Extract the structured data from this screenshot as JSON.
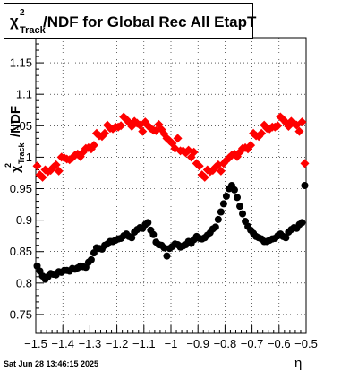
{
  "chart_data": {
    "type": "scatter",
    "title": {
      "prefix": "χ",
      "sup": "2",
      "sub": "Track",
      "text": "/NDF for Global Rec All EtapT"
    },
    "ylabel": {
      "prefix": "χ",
      "sup": "2",
      "sub": "Track",
      "text": "/NDF"
    },
    "xlabel": "η",
    "timestamp": "Sat Jun 28 13:46:15 2025",
    "xlim": [
      -1.5,
      -0.5
    ],
    "ylim": [
      0.72,
      1.19
    ],
    "grid": true,
    "x_ticks": [
      {
        "value": -1.5,
        "label": "−1.5"
      },
      {
        "value": -1.4,
        "label": "−1.4"
      },
      {
        "value": -1.3,
        "label": "−1.3"
      },
      {
        "value": -1.2,
        "label": "−1.2"
      },
      {
        "value": -1.1,
        "label": "−1.1"
      },
      {
        "value": -1.0,
        "label": "−1"
      },
      {
        "value": -0.9,
        "label": "−0.9"
      },
      {
        "value": -0.8,
        "label": "−0.8"
      },
      {
        "value": -0.7,
        "label": "−0.7"
      },
      {
        "value": -0.6,
        "label": "−0.6"
      },
      {
        "value": -0.5,
        "label": "−0.5"
      }
    ],
    "y_ticks": [
      {
        "value": 0.75,
        "label": "0.75"
      },
      {
        "value": 0.8,
        "label": "0.8"
      },
      {
        "value": 0.85,
        "label": "0.85"
      },
      {
        "value": 0.9,
        "label": "0.9"
      },
      {
        "value": 0.95,
        "label": "0.95"
      },
      {
        "value": 1.0,
        "label": "1"
      },
      {
        "value": 1.05,
        "label": "1.05"
      },
      {
        "value": 1.1,
        "label": "1.1"
      },
      {
        "value": 1.15,
        "label": "1.15"
      }
    ],
    "series": [
      {
        "color": "#ff0000",
        "marker": "diamond",
        "x": [
          -1.495,
          -1.485,
          -1.475,
          -1.465,
          -1.455,
          -1.445,
          -1.435,
          -1.425,
          -1.415,
          -1.405,
          -1.395,
          -1.385,
          -1.375,
          -1.365,
          -1.355,
          -1.345,
          -1.335,
          -1.325,
          -1.315,
          -1.305,
          -1.295,
          -1.285,
          -1.275,
          -1.265,
          -1.255,
          -1.245,
          -1.235,
          -1.225,
          -1.215,
          -1.205,
          -1.195,
          -1.185,
          -1.175,
          -1.165,
          -1.155,
          -1.145,
          -1.135,
          -1.125,
          -1.115,
          -1.105,
          -1.095,
          -1.085,
          -1.075,
          -1.065,
          -1.055,
          -1.045,
          -1.035,
          -1.025,
          -1.015,
          -1.005,
          -0.995,
          -0.985,
          -0.975,
          -0.965,
          -0.955,
          -0.945,
          -0.935,
          -0.925,
          -0.915,
          -0.905,
          -0.895,
          -0.885,
          -0.875,
          -0.865,
          -0.855,
          -0.845,
          -0.835,
          -0.825,
          -0.815,
          -0.805,
          -0.795,
          -0.785,
          -0.775,
          -0.765,
          -0.755,
          -0.745,
          -0.735,
          -0.725,
          -0.715,
          -0.705,
          -0.695,
          -0.685,
          -0.675,
          -0.665,
          -0.655,
          -0.645,
          -0.635,
          -0.625,
          -0.615,
          -0.605,
          -0.595,
          -0.585,
          -0.575,
          -0.565,
          -0.555,
          -0.545,
          -0.535,
          -0.525,
          -0.515,
          -0.505
        ],
        "y": [
          0.986,
          0.972,
          0.968,
          0.98,
          0.977,
          0.979,
          0.984,
          0.988,
          0.978,
          1.0,
          0.999,
          0.997,
          0.996,
          0.999,
          1.003,
          1.005,
          1.001,
          1.008,
          1.014,
          1.015,
          1.013,
          1.019,
          1.038,
          1.034,
          1.033,
          1.038,
          1.051,
          1.046,
          1.045,
          1.048,
          1.048,
          1.05,
          1.064,
          1.06,
          1.055,
          1.049,
          1.057,
          1.054,
          1.051,
          1.041,
          1.056,
          1.05,
          1.046,
          1.043,
          1.042,
          1.052,
          1.044,
          1.037,
          1.03,
          1.026,
          1.022,
          1.014,
          1.03,
          1.01,
          1.01,
          1.007,
          1.011,
          1.0,
          1.008,
          0.99,
          0.986,
          0.972,
          0.968,
          0.98,
          0.977,
          0.979,
          0.984,
          0.988,
          0.978,
          0.99,
          0.995,
          0.999,
          1.003,
          1.005,
          1.001,
          1.008,
          1.014,
          1.015,
          1.013,
          1.019,
          1.038,
          1.034,
          1.033,
          1.038,
          1.051,
          1.046,
          1.045,
          1.048,
          1.048,
          1.05,
          1.064,
          1.06,
          1.055,
          1.049,
          1.057,
          1.054,
          1.051,
          1.041,
          1.056,
          0.99
        ]
      },
      {
        "color": "#000000",
        "marker": "circle",
        "x": [
          -1.495,
          -1.485,
          -1.475,
          -1.465,
          -1.455,
          -1.445,
          -1.435,
          -1.425,
          -1.415,
          -1.405,
          -1.395,
          -1.385,
          -1.375,
          -1.365,
          -1.355,
          -1.345,
          -1.335,
          -1.325,
          -1.315,
          -1.305,
          -1.295,
          -1.285,
          -1.275,
          -1.265,
          -1.255,
          -1.245,
          -1.235,
          -1.225,
          -1.215,
          -1.205,
          -1.195,
          -1.185,
          -1.175,
          -1.165,
          -1.155,
          -1.145,
          -1.135,
          -1.125,
          -1.115,
          -1.105,
          -1.095,
          -1.085,
          -1.075,
          -1.065,
          -1.055,
          -1.045,
          -1.035,
          -1.025,
          -1.015,
          -1.005,
          -0.995,
          -0.985,
          -0.975,
          -0.965,
          -0.955,
          -0.945,
          -0.935,
          -0.925,
          -0.915,
          -0.905,
          -0.895,
          -0.885,
          -0.875,
          -0.865,
          -0.855,
          -0.845,
          -0.835,
          -0.825,
          -0.815,
          -0.805,
          -0.795,
          -0.785,
          -0.775,
          -0.765,
          -0.755,
          -0.745,
          -0.735,
          -0.725,
          -0.715,
          -0.705,
          -0.695,
          -0.685,
          -0.675,
          -0.665,
          -0.655,
          -0.645,
          -0.635,
          -0.625,
          -0.615,
          -0.605,
          -0.595,
          -0.585,
          -0.575,
          -0.565,
          -0.555,
          -0.545,
          -0.535,
          -0.525,
          -0.515,
          -0.505
        ],
        "y": [
          0.827,
          0.819,
          0.811,
          0.806,
          0.81,
          0.815,
          0.814,
          0.813,
          0.818,
          0.817,
          0.82,
          0.82,
          0.819,
          0.823,
          0.822,
          0.824,
          0.827,
          0.826,
          0.825,
          0.833,
          0.837,
          0.848,
          0.856,
          0.855,
          0.854,
          0.86,
          0.862,
          0.866,
          0.866,
          0.868,
          0.87,
          0.871,
          0.875,
          0.878,
          0.874,
          0.872,
          0.881,
          0.885,
          0.888,
          0.887,
          0.893,
          0.896,
          0.884,
          0.877,
          0.865,
          0.861,
          0.86,
          0.856,
          0.843,
          0.855,
          0.858,
          0.862,
          0.861,
          0.857,
          0.859,
          0.861,
          0.866,
          0.863,
          0.869,
          0.874,
          0.871,
          0.87,
          0.872,
          0.876,
          0.88,
          0.886,
          0.889,
          0.901,
          0.913,
          0.926,
          0.938,
          0.95,
          0.955,
          0.948,
          0.936,
          0.922,
          0.91,
          0.898,
          0.89,
          0.884,
          0.879,
          0.874,
          0.872,
          0.87,
          0.866,
          0.866,
          0.868,
          0.87,
          0.871,
          0.875,
          0.878,
          0.874,
          0.872,
          0.881,
          0.885,
          0.888,
          0.887,
          0.893,
          0.896,
          0.955
        ]
      }
    ]
  }
}
